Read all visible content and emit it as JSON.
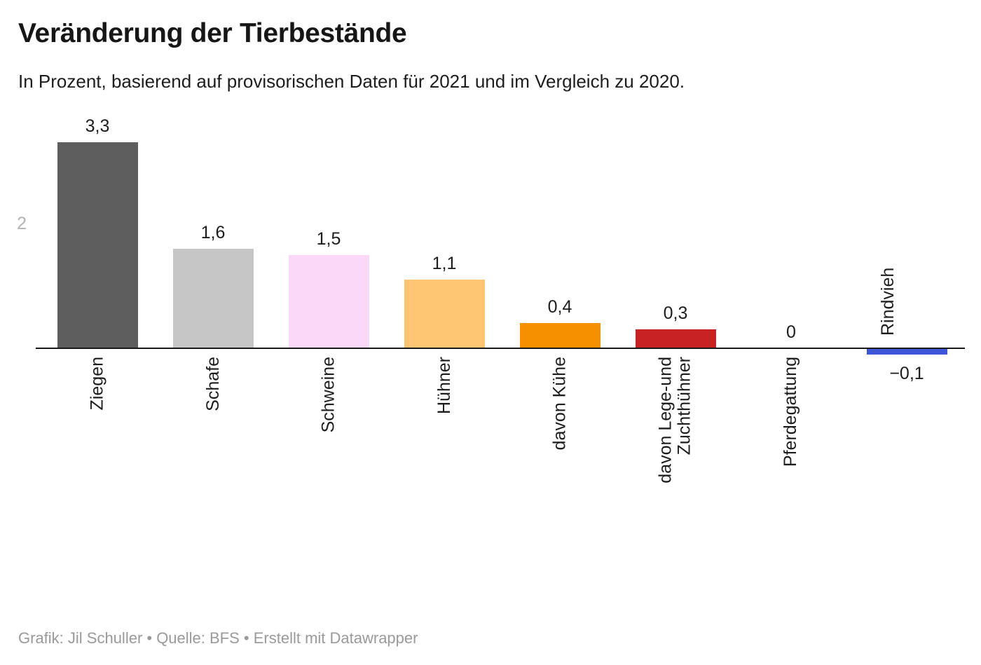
{
  "header": {
    "title": "Veränderung der Tierbestände",
    "subtitle": "In Prozent, basierend auf provisorischen Daten für 2021 und im Vergleich zu 2020."
  },
  "footer": {
    "credit": "Grafik: Jil Schuller • Quelle: BFS • Erstellt mit Datawrapper"
  },
  "chart_data": {
    "type": "bar",
    "title": "Veränderung der Tierbestände",
    "subtitle": "In Prozent, basierend auf provisorischen Daten für 2021 und im Vergleich zu 2020.",
    "unit": "Prozent",
    "ylim": [
      -0.3,
      3.5
    ],
    "grid": "off",
    "y_axis_ticks": [
      {
        "value": 2,
        "label": "2"
      }
    ],
    "categories": [
      "Ziegen",
      "Schafe",
      "Schweine",
      "Hühner",
      "davon Kühe",
      "davon Lege-und\nZuchthühner",
      "Pferdegattung",
      "Rindvieh"
    ],
    "values": [
      3.3,
      1.6,
      1.5,
      1.1,
      0.4,
      0.3,
      0,
      -0.1
    ],
    "bars": [
      {
        "label": "Ziegen",
        "value": 3.3,
        "display": "3,3",
        "color": "#5e5e5e"
      },
      {
        "label": "Schafe",
        "value": 1.6,
        "display": "1,6",
        "color": "#c6c6c6"
      },
      {
        "label": "Schweine",
        "value": 1.5,
        "display": "1,5",
        "color": "#fbd7f8"
      },
      {
        "label": "Hühner",
        "value": 1.1,
        "display": "1,1",
        "color": "#fdc572"
      },
      {
        "label": "davon Kühe",
        "value": 0.4,
        "display": "0,4",
        "color": "#f79000"
      },
      {
        "label": "davon Lege-und\nZuchthühner",
        "value": 0.3,
        "display": "0,3",
        "color": "#c92222"
      },
      {
        "label": "Pferdegattung",
        "value": 0,
        "display": "0",
        "color": "#999999"
      },
      {
        "label": "Rindvieh",
        "value": -0.1,
        "display": "−0,1",
        "color": "#3e55d7"
      }
    ],
    "axis_color": "#181818",
    "tick_label_color": "#b3b3b3"
  }
}
